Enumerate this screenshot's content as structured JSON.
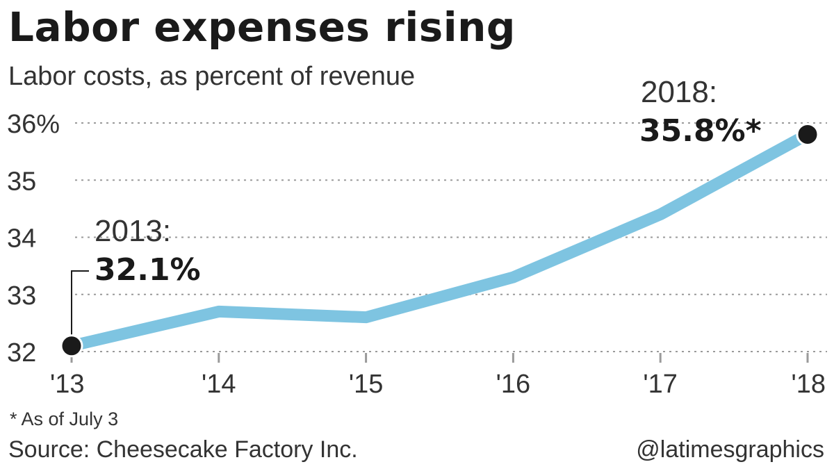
{
  "chart_data": {
    "type": "line",
    "title": "Labor expenses rising",
    "subtitle": "Labor costs, as percent of revenue",
    "categories": [
      "'13",
      "'14",
      "'15",
      "'16",
      "'17",
      "'18"
    ],
    "series": [
      {
        "values": [
          32.1,
          32.7,
          32.6,
          33.3,
          34.4,
          35.8
        ]
      }
    ],
    "ylim": [
      32,
      36
    ],
    "y_ticks": [
      "32",
      "33",
      "34",
      "35",
      "36%"
    ],
    "y_tick_values": [
      32,
      33,
      34,
      35,
      36
    ],
    "grid": true,
    "annotations": [
      {
        "year": "2013:",
        "value": "32.1%"
      },
      {
        "year": "2018:",
        "value": "35.8%*"
      }
    ],
    "line_color": "#7ec4e1",
    "marker_color": "#1a1a1a"
  },
  "footnote": "* As of July 3",
  "source": "Source: Cheesecake Factory Inc.",
  "credit": "@latimesgraphics"
}
